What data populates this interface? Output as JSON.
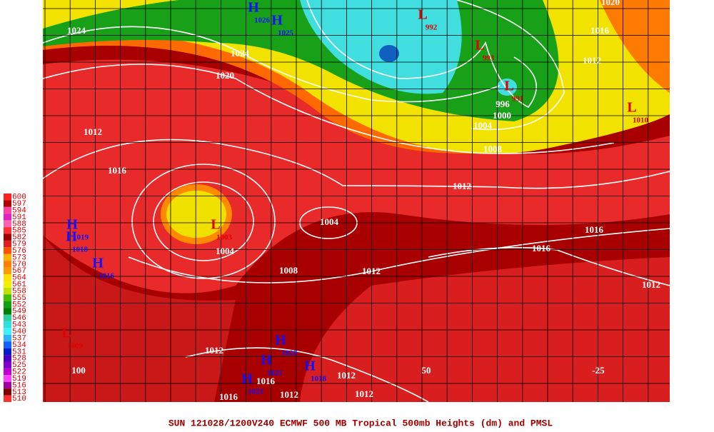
{
  "map": {
    "caption": "SUN 121028/1200V240  ECMWF  500 MB Tropical 500mb Heights (dm) and PMSL",
    "color_scale": {
      "labels": [
        "600",
        "597",
        "594",
        "591",
        "588",
        "585",
        "582",
        "579",
        "576",
        "573",
        "570",
        "567",
        "564",
        "561",
        "558",
        "555",
        "552",
        "549",
        "546",
        "543",
        "540",
        "537",
        "534",
        "531",
        "528",
        "525",
        "522",
        "519",
        "516",
        "513",
        "510"
      ],
      "colors": [
        "#ff2020",
        "#b00000",
        "#ff40a0",
        "#e020c0",
        "#ff60b0",
        "#ff3030",
        "#a00000",
        "#e02020",
        "#ff5000",
        "#ffb000",
        "#ff8000",
        "#ff9a00",
        "#ffe000",
        "#f0f000",
        "#c0e000",
        "#40c000",
        "#10a010",
        "#008000",
        "#30d0a0",
        "#30e0e0",
        "#40f0ff",
        "#30b0ff",
        "#1060ff",
        "#0020d0",
        "#5000c0",
        "#8000d0",
        "#c000d0",
        "#ff40ff",
        "#a000a0",
        "#800000",
        "#ff3030"
      ]
    },
    "longitude_labels": [
      "100",
      "50",
      "-25"
    ],
    "pressure_centers": [
      {
        "symbol": "H",
        "value": "1026"
      },
      {
        "symbol": "H",
        "value": "1025"
      },
      {
        "symbol": "L",
        "value": "992"
      },
      {
        "symbol": "L",
        "value": "993"
      },
      {
        "symbol": "L",
        "value": "991"
      },
      {
        "symbol": "L",
        "value": "1010"
      },
      {
        "symbol": "L",
        "value": "1003"
      },
      {
        "symbol": "H",
        "value": "1019"
      },
      {
        "symbol": "H",
        "value": "1018"
      },
      {
        "symbol": "H",
        "value": "1016"
      },
      {
        "symbol": "L",
        "value": "1009"
      },
      {
        "symbol": "H",
        "value": "1020"
      },
      {
        "symbol": "H",
        "value": "1021"
      },
      {
        "symbol": "H",
        "value": "1021"
      },
      {
        "symbol": "H",
        "value": "1018"
      }
    ],
    "isobar_labels": [
      "1024",
      "1024",
      "1020",
      "1020",
      "1016",
      "1012",
      "996",
      "1000",
      "1004",
      "1008",
      "1012",
      "1016",
      "1012",
      "1016",
      "1016",
      "1004",
      "1004",
      "1008",
      "1012",
      "1012",
      "1012",
      "1012",
      "1012",
      "1012",
      "1016",
      "1016"
    ]
  }
}
